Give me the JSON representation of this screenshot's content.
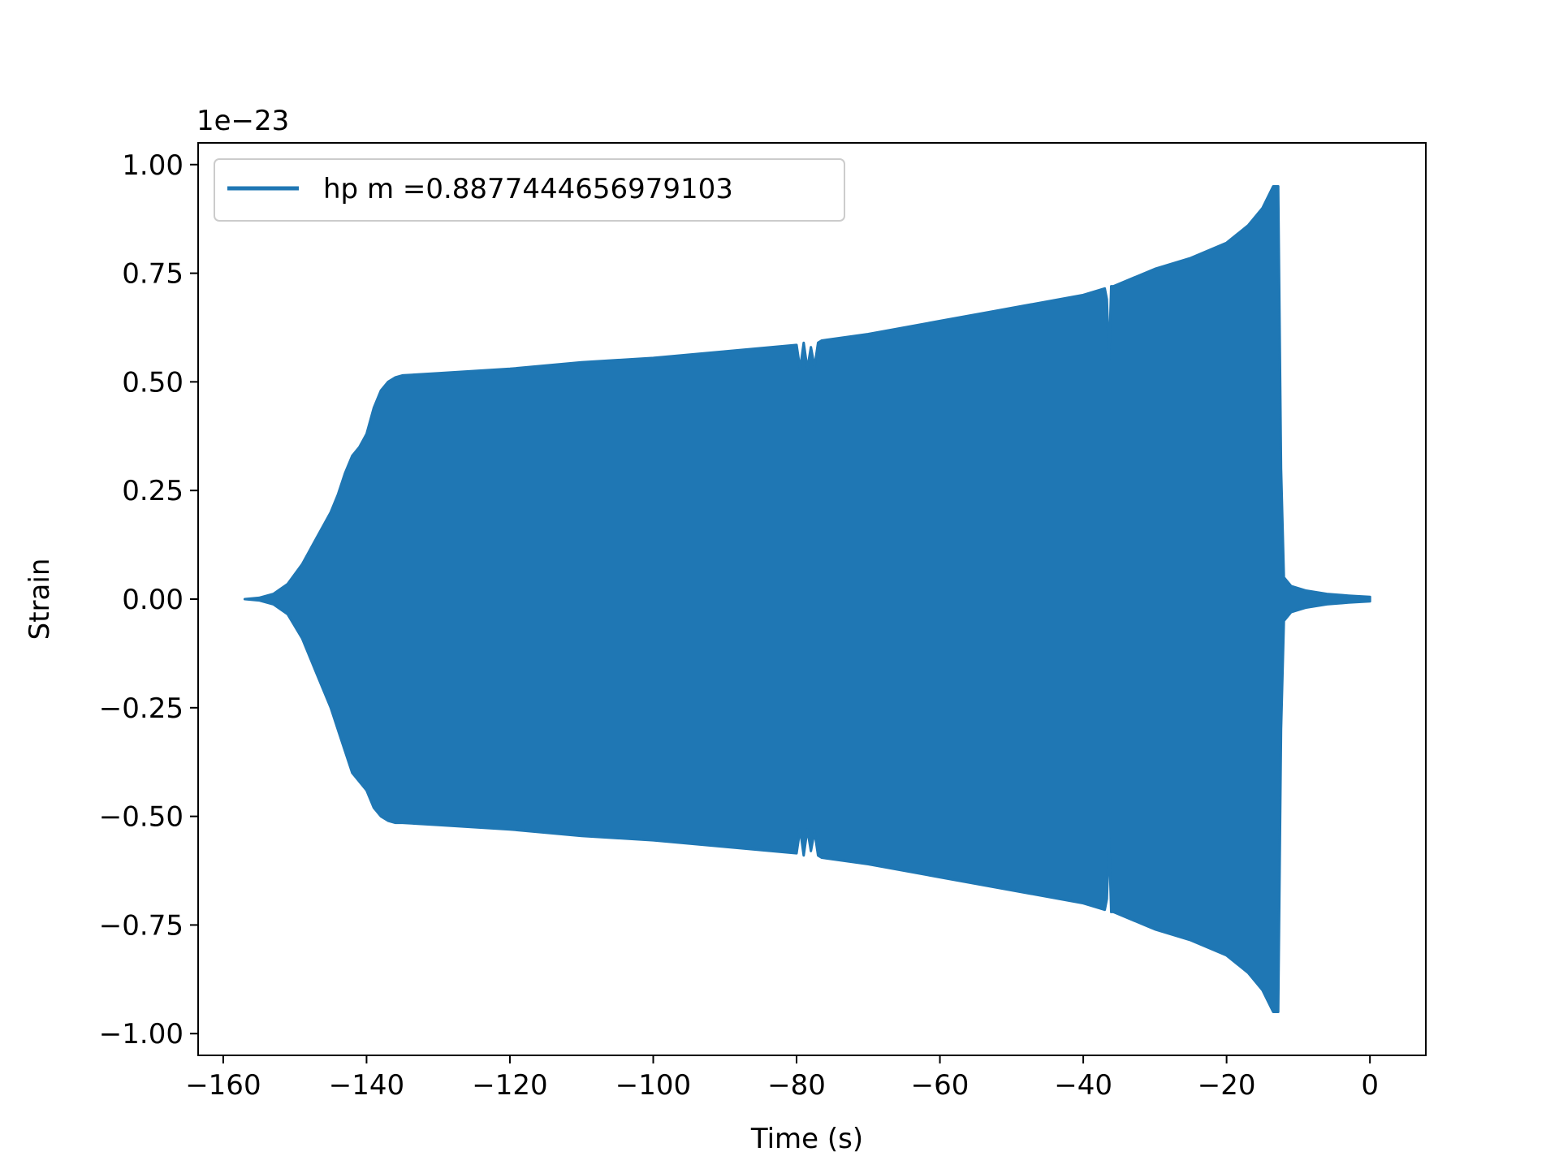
{
  "chart_data": {
    "type": "line",
    "title": "",
    "xlabel": "Time (s)",
    "ylabel": "Strain",
    "y_offset_label": "1e−23",
    "xlim": [
      -163.5,
      7.8
    ],
    "ylim": [
      -1.05,
      1.05
    ],
    "x_ticks": [
      -160,
      -140,
      -120,
      -100,
      -80,
      -60,
      -40,
      -20,
      0
    ],
    "x_tick_labels": [
      "−160",
      "−140",
      "−120",
      "−100",
      "−80",
      "−60",
      "−40",
      "−20",
      "0"
    ],
    "y_ticks": [
      1.0,
      0.75,
      0.5,
      0.25,
      0.0,
      -0.25,
      -0.5,
      -0.75,
      -1.0
    ],
    "y_tick_labels": [
      "1.00",
      "0.75",
      "0.50",
      "0.25",
      "0.00",
      "−0.25",
      "−0.50",
      "−0.75",
      "−1.00"
    ],
    "grid": false,
    "legend_position": "top-left",
    "series": [
      {
        "name": "hp m =0.8877444656979103",
        "color": "#1f77b4",
        "representation": "envelope of densely oscillating waveform",
        "x": [
          -157.0,
          -155.0,
          -153.0,
          -151.0,
          -149.0,
          -147.0,
          -145.0,
          -144.0,
          -143.0,
          -142.0,
          -141.0,
          -140.0,
          -139.0,
          -138.0,
          -137.0,
          -136.0,
          -135.0,
          -130.0,
          -120.0,
          -110.0,
          -100.0,
          -90.0,
          -80.0,
          -79.5,
          -79.0,
          -78.5,
          -78.0,
          -77.5,
          -77.0,
          -76.5,
          -70.0,
          -60.0,
          -50.0,
          -40.0,
          -37.0,
          -36.7,
          -36.4,
          -36.1,
          -35.8,
          -30.0,
          -25.0,
          -20.0,
          -17.0,
          -15.0,
          -13.5,
          -12.8,
          -12.4,
          -12.0,
          -11.0,
          -9.0,
          -6.0,
          -3.0,
          0.0
        ],
        "upper": [
          0.0,
          0.003,
          0.012,
          0.035,
          0.08,
          0.14,
          0.2,
          0.24,
          0.29,
          0.33,
          0.35,
          0.38,
          0.44,
          0.48,
          0.5,
          0.51,
          0.515,
          0.52,
          0.53,
          0.545,
          0.555,
          0.57,
          0.585,
          0.53,
          0.59,
          0.53,
          0.58,
          0.535,
          0.59,
          0.595,
          0.61,
          0.64,
          0.67,
          0.7,
          0.715,
          0.69,
          0.55,
          0.72,
          0.72,
          0.76,
          0.785,
          0.82,
          0.86,
          0.9,
          0.95,
          0.95,
          0.3,
          0.05,
          0.03,
          0.02,
          0.012,
          0.008,
          0.005
        ],
        "lower": [
          0.0,
          -0.003,
          -0.012,
          -0.035,
          -0.09,
          -0.17,
          -0.25,
          -0.3,
          -0.35,
          -0.4,
          -0.42,
          -0.44,
          -0.48,
          -0.5,
          -0.51,
          -0.515,
          -0.515,
          -0.52,
          -0.53,
          -0.545,
          -0.555,
          -0.57,
          -0.585,
          -0.53,
          -0.59,
          -0.53,
          -0.58,
          -0.535,
          -0.59,
          -0.595,
          -0.61,
          -0.64,
          -0.67,
          -0.7,
          -0.715,
          -0.69,
          -0.55,
          -0.72,
          -0.72,
          -0.76,
          -0.785,
          -0.82,
          -0.86,
          -0.9,
          -0.95,
          -0.95,
          -0.3,
          -0.05,
          -0.03,
          -0.02,
          -0.012,
          -0.008,
          -0.005
        ]
      }
    ]
  }
}
